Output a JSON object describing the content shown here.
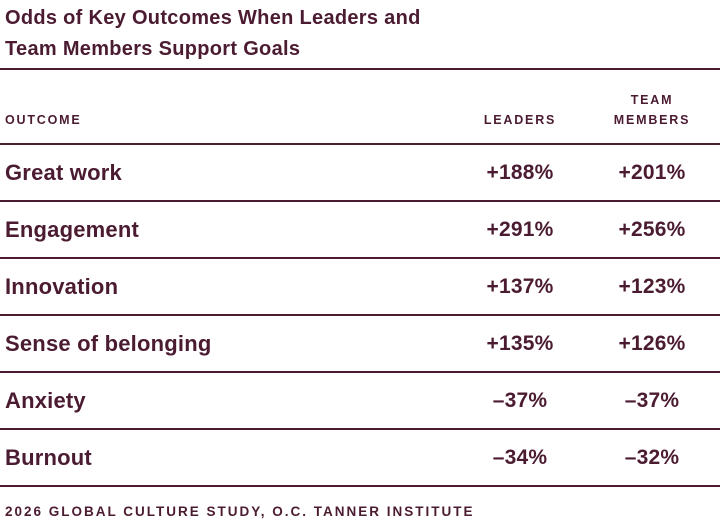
{
  "title": {
    "line1": "Odds of Key Outcomes When Leaders and",
    "line2": "Team Members Support Goals"
  },
  "table": {
    "headers": {
      "outcome": "OUTCOME",
      "leaders": "LEADERS",
      "team_members": "TEAM MEMBERS"
    },
    "rows": [
      {
        "outcome": "Great work",
        "leaders": "+188%",
        "team_members": "+201%"
      },
      {
        "outcome": "Engagement",
        "leaders": "+291%",
        "team_members": "+256%"
      },
      {
        "outcome": "Innovation",
        "leaders": "+137%",
        "team_members": "+123%"
      },
      {
        "outcome": "Sense of belonging",
        "leaders": "+135%",
        "team_members": "+126%"
      },
      {
        "outcome": "Anxiety",
        "leaders": "–37%",
        "team_members": "–37%"
      },
      {
        "outcome": "Burnout",
        "leaders": "–34%",
        "team_members": "–32%"
      }
    ]
  },
  "footer": {
    "source": "2026 GLOBAL CULTURE STUDY, O.C. TANNER INSTITUTE"
  },
  "colors": {
    "accent_maroon": "#4b1b31",
    "background": "#ffffff"
  },
  "chart_data": {
    "type": "table",
    "title": "Odds of Key Outcomes When Leaders and Team Members Support Goals",
    "categories": [
      "Great work",
      "Engagement",
      "Innovation",
      "Sense of belonging",
      "Anxiety",
      "Burnout"
    ],
    "series": [
      {
        "name": "Leaders",
        "values_pct": [
          188,
          291,
          137,
          135,
          -37,
          -34
        ]
      },
      {
        "name": "Team Members",
        "values_pct": [
          201,
          256,
          123,
          126,
          -37,
          -32
        ]
      }
    ],
    "value_format": "signed percent",
    "source": "2026 Global Culture Study, O.C. Tanner Institute"
  }
}
